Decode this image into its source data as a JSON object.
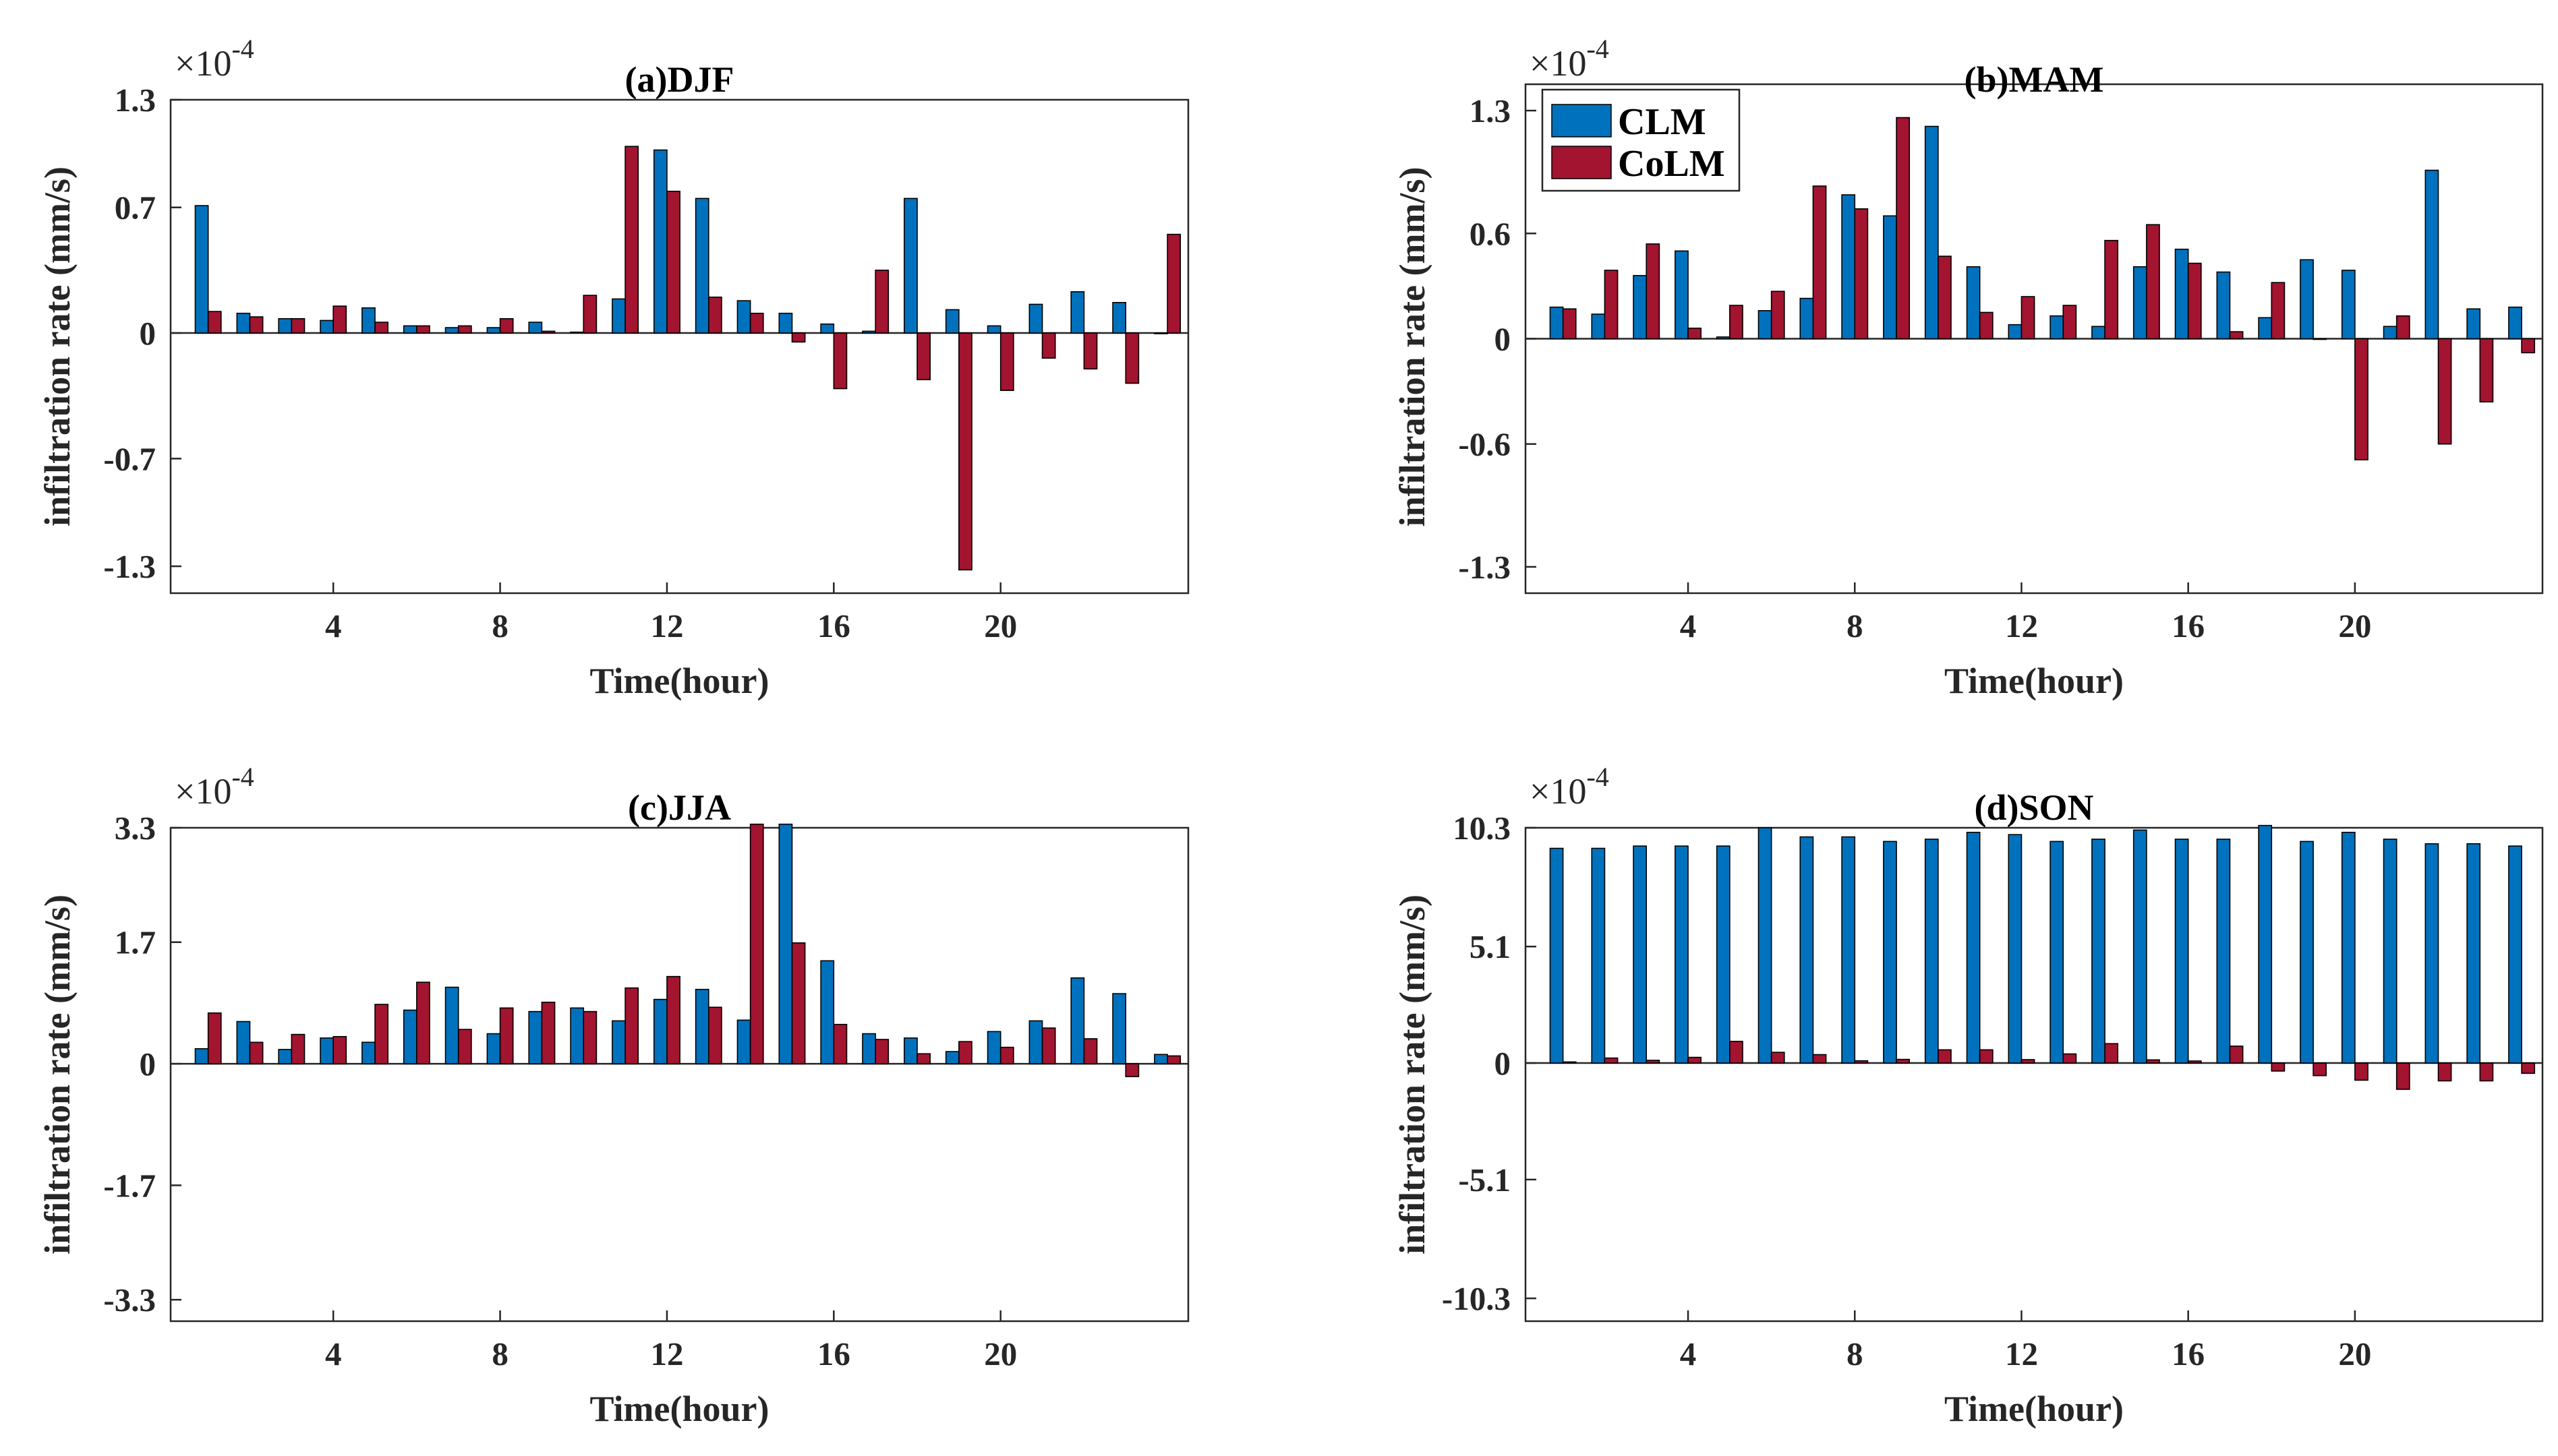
{
  "colors": {
    "clm": "#0072BD",
    "colm": "#A2142F",
    "axis": "#262626"
  },
  "legend": {
    "clm_label": "CLM",
    "colm_label": "CoLM",
    "location": "top-left of panel (b)"
  },
  "chart_data": [
    {
      "type": "bar",
      "title": "(a)DJF",
      "xlabel": "Time(hour)",
      "ylabel": "infiltration rate (mm/s)",
      "scale_prefix": "×10",
      "scale_exponent": "-4",
      "x": [
        1,
        2,
        3,
        4,
        5,
        6,
        7,
        8,
        9,
        10,
        11,
        12,
        13,
        14,
        15,
        16,
        17,
        18,
        19,
        20,
        21,
        22,
        23,
        24
      ],
      "xlim": [
        0.1,
        24.5
      ],
      "ylim": [
        -1.45,
        1.3
      ],
      "xticks": [
        4,
        8,
        12,
        16,
        20
      ],
      "xtick_labels": [
        "4",
        "8",
        "12",
        "16",
        "20"
      ],
      "yticks": [
        1.3,
        0.7,
        0,
        -0.7,
        -1.3
      ],
      "ytick_labels": [
        "1.3",
        "0.7",
        "0",
        "-0.7",
        "-1.3"
      ],
      "series": [
        {
          "name": "CLM",
          "values": [
            0.71,
            0.11,
            0.08,
            0.07,
            0.14,
            0.04,
            0.03,
            0.03,
            0.06,
            0.005,
            0.19,
            1.02,
            0.75,
            0.18,
            0.11,
            0.05,
            0.01,
            0.75,
            0.13,
            0.04,
            0.16,
            0.23,
            0.17,
            0.0
          ]
        },
        {
          "name": "CoLM",
          "values": [
            0.12,
            0.09,
            0.08,
            0.15,
            0.06,
            0.04,
            0.04,
            0.08,
            0.01,
            0.21,
            1.04,
            0.79,
            0.2,
            0.11,
            -0.05,
            -0.31,
            0.35,
            -0.26,
            -1.32,
            -0.32,
            -0.14,
            -0.2,
            -0.28,
            0.55
          ]
        }
      ]
    },
    {
      "type": "bar",
      "title": "(b)MAM",
      "xlabel": "Time(hour)",
      "ylabel": "infiltration rate (mm/s)",
      "scale_prefix": "×10",
      "scale_exponent": "-4",
      "x": [
        1,
        2,
        3,
        4,
        5,
        6,
        7,
        8,
        9,
        10,
        11,
        12,
        13,
        14,
        15,
        16,
        17,
        18,
        19,
        20,
        21,
        22,
        23,
        24
      ],
      "xlim": [
        0.1,
        24.5
      ],
      "ylim": [
        -1.45,
        1.45
      ],
      "xticks": [
        4,
        8,
        12,
        16,
        20
      ],
      "xtick_labels": [
        "4",
        "8",
        "12",
        "16",
        "20"
      ],
      "yticks": [
        1.3,
        0.6,
        0,
        -0.6,
        -1.3
      ],
      "ytick_labels": [
        "1.3",
        "0.6",
        "0",
        "-0.6",
        "-1.3"
      ],
      "series": [
        {
          "name": "CLM",
          "values": [
            0.18,
            0.14,
            0.36,
            0.5,
            0.01,
            0.16,
            0.23,
            0.82,
            0.7,
            1.21,
            0.41,
            0.08,
            0.13,
            0.07,
            0.41,
            0.51,
            0.38,
            0.12,
            0.45,
            0.39,
            0.07,
            0.96,
            0.17,
            0.18
          ]
        },
        {
          "name": "CoLM",
          "values": [
            0.17,
            0.39,
            0.54,
            0.06,
            0.19,
            0.27,
            0.87,
            0.74,
            1.26,
            0.47,
            0.15,
            0.24,
            0.19,
            0.56,
            0.65,
            0.43,
            0.04,
            0.32,
            0.0,
            -0.69,
            0.13,
            -0.6,
            -0.36,
            -0.08
          ]
        }
      ]
    },
    {
      "type": "bar",
      "title": "(c)JJA",
      "xlabel": "Time(hour)",
      "ylabel": "infiltration rate (mm/s)",
      "scale_prefix": "×10",
      "scale_exponent": "-4",
      "x": [
        1,
        2,
        3,
        4,
        5,
        6,
        7,
        8,
        9,
        10,
        11,
        12,
        13,
        14,
        15,
        16,
        17,
        18,
        19,
        20,
        21,
        22,
        23,
        24
      ],
      "xlim": [
        0.1,
        24.5
      ],
      "ylim": [
        -3.6,
        3.3
      ],
      "xticks": [
        4,
        8,
        12,
        16,
        20
      ],
      "xtick_labels": [
        "4",
        "8",
        "12",
        "16",
        "20"
      ],
      "yticks": [
        3.3,
        1.7,
        0,
        -1.7,
        -3.3
      ],
      "ytick_labels": [
        "3.3",
        "1.7",
        "0",
        "-1.7",
        "-3.3"
      ],
      "series": [
        {
          "name": "CLM",
          "values": [
            0.21,
            0.59,
            0.2,
            0.36,
            0.3,
            0.75,
            1.07,
            0.42,
            0.73,
            0.78,
            0.6,
            0.9,
            1.04,
            0.61,
            3.35,
            1.44,
            0.42,
            0.36,
            0.17,
            0.45,
            0.6,
            1.2,
            0.98,
            0.13
          ]
        },
        {
          "name": "CoLM",
          "values": [
            0.71,
            0.3,
            0.41,
            0.38,
            0.83,
            1.14,
            0.48,
            0.78,
            0.86,
            0.73,
            1.06,
            1.22,
            0.79,
            3.35,
            1.69,
            0.55,
            0.34,
            0.14,
            0.31,
            0.23,
            0.5,
            0.35,
            -0.18,
            0.11
          ]
        }
      ]
    },
    {
      "type": "bar",
      "title": "(d)SON",
      "xlabel": "Time(hour)",
      "ylabel": "infiltration rate (mm/s)",
      "scale_prefix": "×10",
      "scale_exponent": "-4",
      "x": [
        1,
        2,
        3,
        4,
        5,
        6,
        7,
        8,
        9,
        10,
        11,
        12,
        13,
        14,
        15,
        16,
        17,
        18,
        19,
        20,
        21,
        22,
        23,
        24
      ],
      "xlim": [
        0.1,
        24.5
      ],
      "ylim": [
        -11.3,
        10.3
      ],
      "xticks": [
        4,
        8,
        12,
        16,
        20
      ],
      "xtick_labels": [
        "4",
        "8",
        "12",
        "16",
        "20"
      ],
      "yticks": [
        10.3,
        5.1,
        0,
        -5.1,
        -10.3
      ],
      "ytick_labels": [
        "10.3",
        "5.1",
        "0",
        "-5.1",
        "-10.3"
      ],
      "series": [
        {
          "name": "CLM",
          "values": [
            9.4,
            9.4,
            9.5,
            9.5,
            9.5,
            10.3,
            9.9,
            9.9,
            9.7,
            9.8,
            10.1,
            10.0,
            9.7,
            9.8,
            10.2,
            9.8,
            9.8,
            10.4,
            9.7,
            10.1,
            9.8,
            9.6,
            9.6,
            9.5
          ]
        },
        {
          "name": "CoLM",
          "values": [
            0.05,
            0.22,
            0.12,
            0.25,
            0.95,
            0.47,
            0.37,
            0.1,
            0.16,
            0.58,
            0.58,
            0.15,
            0.4,
            0.85,
            0.14,
            0.09,
            0.74,
            -0.35,
            -0.55,
            -0.75,
            -1.15,
            -0.78,
            -0.78,
            -0.45
          ]
        }
      ]
    }
  ]
}
